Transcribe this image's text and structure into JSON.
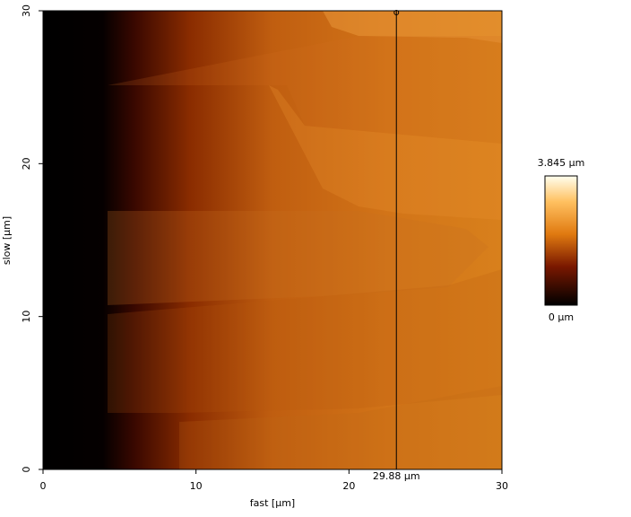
{
  "chart_data": {
    "type": "image",
    "xlabel": "fast [µm]",
    "ylabel": "slow [µm]",
    "xlim": [
      0,
      30
    ],
    "ylim": [
      0,
      30
    ],
    "xticks": [
      0,
      10,
      20,
      30
    ],
    "yticks": [
      0,
      10,
      20,
      30
    ],
    "marker_x": 23.1,
    "marker_label": "29.88 µm",
    "zlim": [
      0,
      3.845
    ],
    "colorbar_ticks": [
      {
        "value": 3.845,
        "label": "3.845 µm"
      },
      {
        "value": 0,
        "label": "0 µm"
      }
    ]
  }
}
